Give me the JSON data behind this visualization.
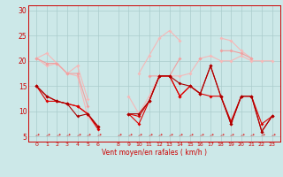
{
  "xlabel": "Vent moyen/en rafales ( km/h )",
  "background_color": "#cce8e8",
  "grid_color": "#aacccc",
  "hours": [
    0,
    1,
    2,
    3,
    4,
    5,
    6,
    8,
    9,
    10,
    11,
    12,
    13,
    14,
    15,
    16,
    17,
    18,
    19,
    20,
    21,
    22,
    23
  ],
  "line_rafales_hi": [
    20.5,
    21.5,
    19.5,
    17.5,
    19,
    12.5,
    null,
    null,
    null,
    17.5,
    21,
    24.5,
    26,
    24,
    null,
    20.5,
    null,
    24.5,
    24,
    22,
    20.5,
    null,
    null
  ],
  "line_rafales_lo": [
    20.5,
    19,
    19.5,
    17.5,
    17,
    9,
    6.5,
    null,
    13,
    9.5,
    13,
    17,
    17,
    17,
    17.5,
    20.5,
    21,
    20,
    20,
    21,
    20,
    20,
    20
  ],
  "line_rafales_mid": [
    20.5,
    19.5,
    19.5,
    17.5,
    17.5,
    11,
    null,
    null,
    null,
    null,
    17,
    17,
    17,
    20.5,
    null,
    20.5,
    null,
    22,
    22,
    21.5,
    20.5,
    null,
    null
  ],
  "line_moyen_hi": [
    15,
    13,
    12,
    11.5,
    11,
    9.5,
    7,
    null,
    9.5,
    9,
    12,
    17,
    17,
    13,
    15,
    13.5,
    19,
    13,
    8,
    13,
    13,
    7.5,
    9
  ],
  "line_moyen_lo": [
    15,
    12,
    12,
    11.5,
    11,
    9.5,
    6.5,
    null,
    9.5,
    7.5,
    12,
    17,
    17,
    13,
    15,
    13.5,
    13,
    13,
    7.5,
    13,
    13,
    6,
    9
  ],
  "line_moyen_dark": [
    15,
    13,
    12,
    11.5,
    9,
    9.5,
    7,
    null,
    9.5,
    9.5,
    12,
    17,
    17,
    15.5,
    15,
    13.5,
    19,
    13,
    7.5,
    13,
    13,
    6,
    9
  ],
  "line_min": [
    null,
    null,
    null,
    null,
    null,
    null,
    6.5,
    null,
    null,
    null,
    null,
    null,
    null,
    null,
    null,
    null,
    null,
    null,
    null,
    null,
    null,
    null,
    null
  ],
  "color_light1": "#f5b8b8",
  "color_light2": "#f0a0a0",
  "color_dark": "#dd0000",
  "color_darkest": "#aa0000",
  "markersize": 2.0,
  "linewidth": 0.8,
  "ylim": [
    4,
    31
  ],
  "yticks": [
    5,
    10,
    15,
    20,
    25,
    30
  ]
}
